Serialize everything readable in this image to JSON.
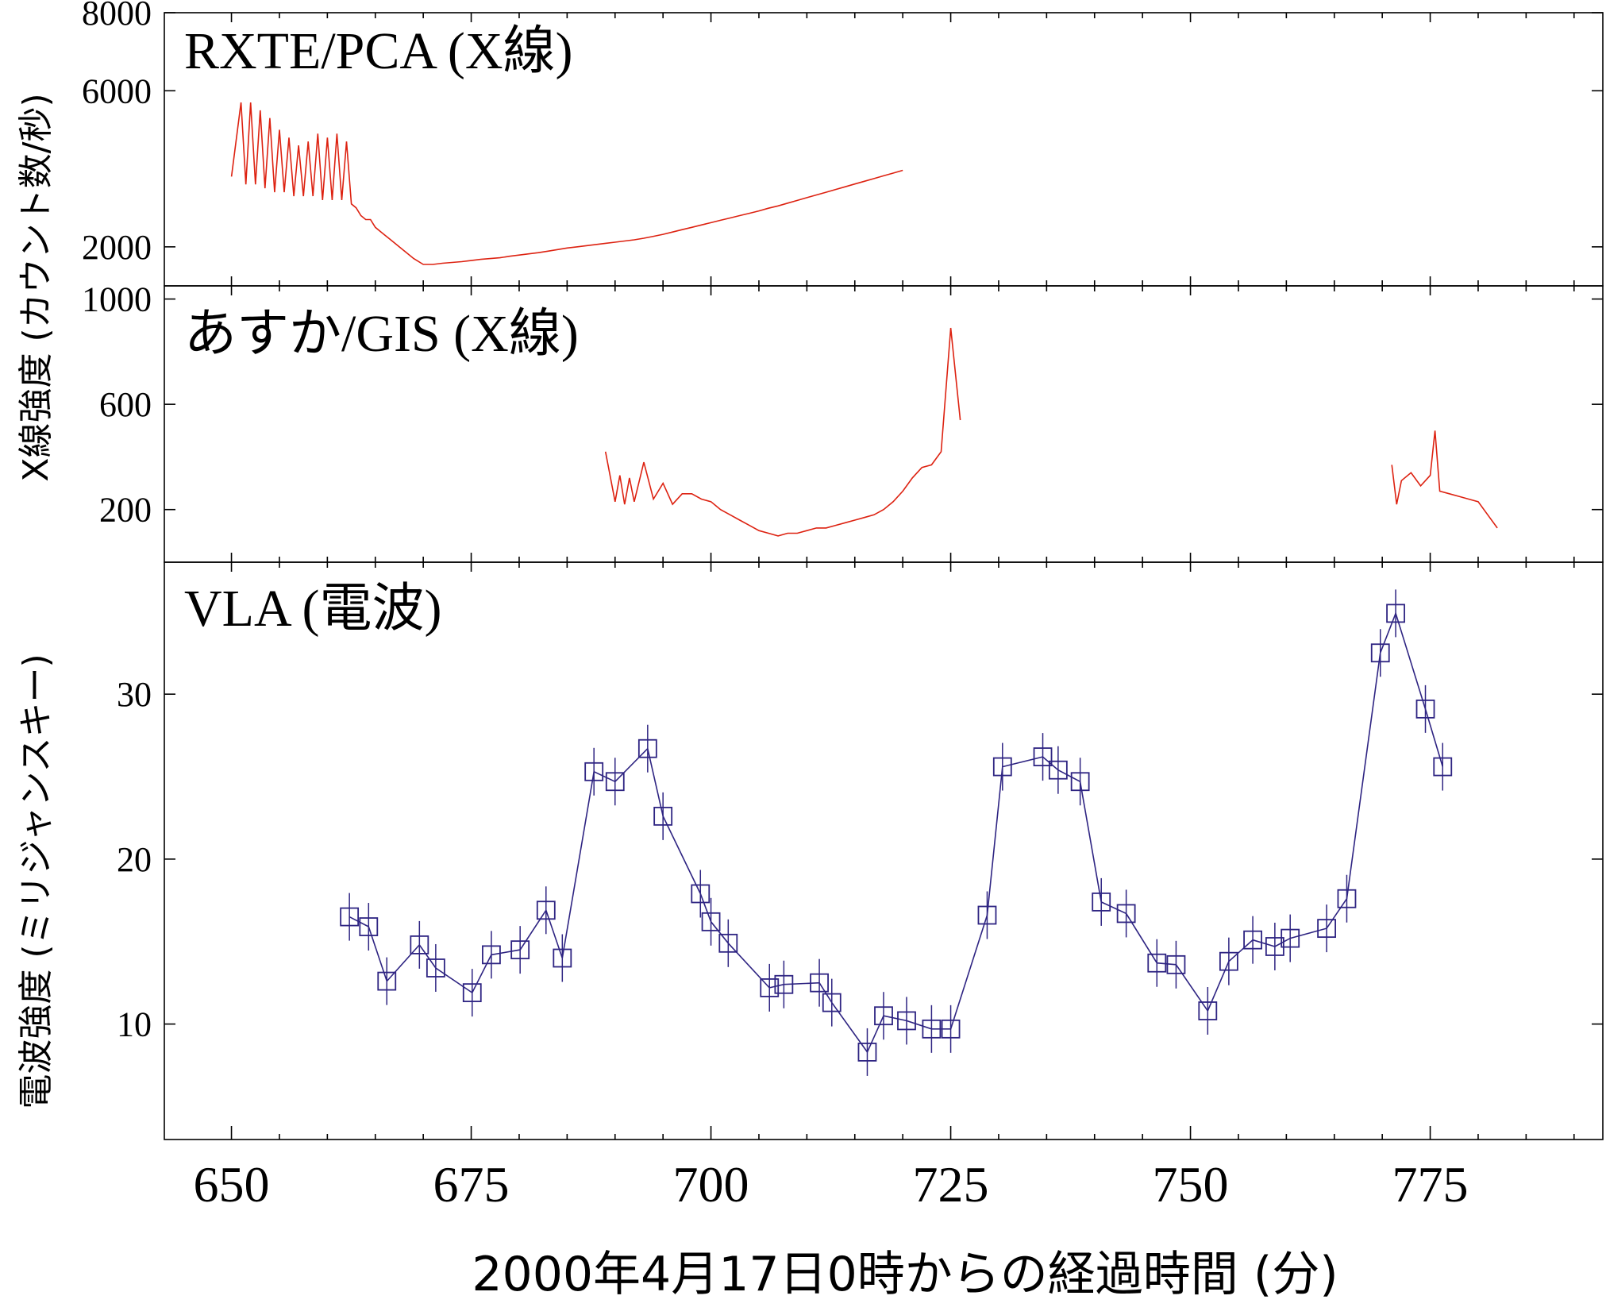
{
  "chart_data": {
    "type": "line",
    "xlabel": "2000年4月17日0時からの経過時間 (分)",
    "xlim": [
      643,
      793
    ],
    "xticks": [
      650,
      675,
      700,
      725,
      750,
      775
    ],
    "ylabel_xray": "X線強度 (カウント数/秒)",
    "ylabel_radio": "電波強度 (ミリジャンスキー)",
    "panels": [
      {
        "id": "rxte",
        "label": "RXTE/PCA (X線)",
        "ylim": [
          1000,
          8000
        ],
        "yticks": [
          2000,
          6000,
          8000
        ],
        "color": "#dd2211",
        "segments": [
          {
            "x": [
              650,
              651,
              651.5,
              652,
              652.5,
              653,
              653.5,
              654,
              654.5,
              655,
              655.5,
              656,
              656.5,
              657,
              657.5,
              658,
              658.5,
              659,
              659.5,
              660,
              660.5,
              661,
              661.5,
              662,
              662.5,
              663,
              663.5,
              664,
              664.5,
              665,
              665.5,
              666,
              666.5,
              667,
              667.5,
              668,
              669,
              670,
              671,
              672,
              673,
              674,
              675,
              676,
              677,
              678,
              679,
              680,
              681,
              682,
              683,
              684,
              685,
              686,
              687,
              688,
              689,
              690,
              691,
              692,
              693,
              694,
              695,
              696,
              697,
              698,
              699,
              700,
              701,
              702,
              703,
              704,
              705,
              706,
              707,
              708,
              709,
              710,
              711,
              712,
              713,
              714,
              715,
              716,
              717,
              718,
              719,
              720
            ],
            "y": [
              3800,
              5700,
              3600,
              5700,
              3600,
              5500,
              3500,
              5300,
              3400,
              5000,
              3400,
              4800,
              3300,
              4600,
              3300,
              4700,
              3300,
              4900,
              3200,
              4800,
              3200,
              4900,
              3200,
              4700,
              3100,
              3000,
              2800,
              2700,
              2700,
              2500,
              2400,
              2300,
              2200,
              2100,
              2000,
              1900,
              1700,
              1550,
              1550,
              1580,
              1600,
              1620,
              1650,
              1680,
              1700,
              1720,
              1760,
              1790,
              1820,
              1850,
              1890,
              1930,
              1970,
              2000,
              2030,
              2060,
              2090,
              2120,
              2150,
              2180,
              2220,
              2270,
              2320,
              2380,
              2440,
              2500,
              2560,
              2620,
              2680,
              2740,
              2800,
              2860,
              2920,
              2990,
              3050,
              3120,
              3190,
              3260,
              3330,
              3400,
              3470,
              3540,
              3610,
              3680,
              3750,
              3820,
              3890,
              3960
            ]
          }
        ]
      },
      {
        "id": "asca",
        "label": "あすか/GIS (X線)",
        "ylim": [
          0,
          1050
        ],
        "yticks": [
          200,
          600,
          1000
        ],
        "color": "#dd2211",
        "segments": [
          {
            "x": [
              689,
              690,
              690.5,
              691,
              691.5,
              692,
              693,
              694,
              695,
              696,
              697,
              698,
              699,
              700,
              701,
              702,
              703,
              704,
              705,
              706,
              707,
              708,
              709,
              710,
              711,
              712,
              713,
              714,
              715,
              716,
              717,
              718,
              719,
              720,
              721,
              722,
              723,
              724,
              725,
              726
            ],
            "y": [
              420,
              230,
              330,
              220,
              320,
              230,
              380,
              240,
              300,
              220,
              260,
              260,
              240,
              230,
              200,
              180,
              160,
              140,
              120,
              110,
              100,
              110,
              110,
              120,
              130,
              130,
              140,
              150,
              160,
              170,
              180,
              200,
              230,
              270,
              320,
              360,
              370,
              420,
              890,
              540
            ]
          },
          {
            "x": [
              771,
              771.5,
              772,
              773,
              774,
              775,
              775.5,
              776,
              777,
              778,
              779,
              780,
              781,
              782
            ],
            "y": [
              370,
              220,
              310,
              340,
              290,
              330,
              500,
              270,
              260,
              250,
              240,
              230,
              180,
              130
            ]
          }
        ]
      },
      {
        "id": "vla",
        "label": "VLA (電波)",
        "ylim": [
          3,
          38
        ],
        "yticks": [
          10,
          20,
          30
        ],
        "color": "#2e2482",
        "points": {
          "x": [
            662.3,
            664.3,
            666.2,
            669.6,
            671.3,
            675.1,
            677.1,
            680.1,
            682.8,
            684.5,
            687.8,
            690,
            693.4,
            695,
            698.9,
            700,
            701.8,
            706.1,
            707.6,
            711.3,
            712.6,
            716.3,
            718,
            720.4,
            723,
            725,
            728.8,
            730.4,
            734.6,
            736.2,
            738.5,
            740.7,
            743.3,
            746.5,
            748.5,
            751.8,
            754,
            756.5,
            758.8,
            760.4,
            764.2,
            766.3,
            769.8,
            771.4,
            774.5,
            776.3
          ],
          "y": [
            16.5,
            15.9,
            12.6,
            14.8,
            13.4,
            11.9,
            14.2,
            14.5,
            16.9,
            14,
            25.3,
            24.7,
            26.7,
            22.6,
            17.9,
            16.2,
            14.9,
            12.2,
            12.4,
            12.5,
            11.3,
            8.3,
            10.5,
            10.2,
            9.7,
            9.7,
            16.6,
            25.6,
            26.2,
            25.4,
            24.7,
            17.4,
            16.7,
            13.7,
            13.6,
            10.8,
            13.8,
            15.1,
            14.7,
            15.2,
            15.8,
            17.6,
            32.5,
            34.9,
            29.1,
            25.6
          ]
        }
      }
    ]
  }
}
